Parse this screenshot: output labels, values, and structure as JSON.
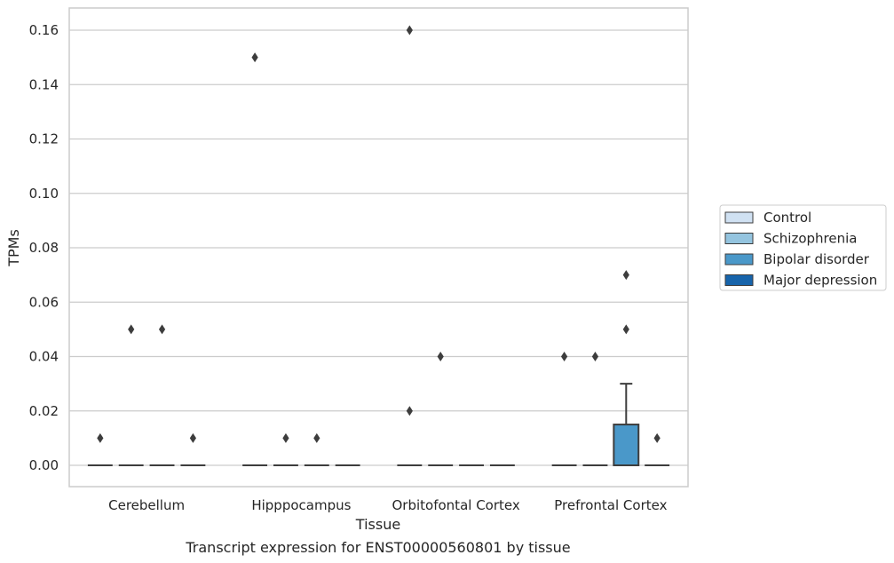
{
  "chart_data": {
    "type": "box",
    "title": "",
    "caption": "Transcript expression for ENST00000560801 by tissue",
    "xlabel": "Tissue",
    "ylabel": "TPMs",
    "ylim": [
      -0.008,
      0.168
    ],
    "yticks": [
      "0.00",
      "0.02",
      "0.04",
      "0.06",
      "0.08",
      "0.10",
      "0.12",
      "0.14",
      "0.16"
    ],
    "grid": "horizontal",
    "legend_position": "right",
    "categories": [
      "Cerebellum",
      "Hipppocampus",
      "Orbitofontal Cortex",
      "Prefrontal Cortex"
    ],
    "series": [
      {
        "name": "Control",
        "color": "#d0e1f2",
        "boxes": [
          {
            "q1": 0,
            "median": 0,
            "q3": 0,
            "whisker_low": 0,
            "whisker_high": 0,
            "outliers": [
              0.01
            ]
          },
          {
            "q1": 0,
            "median": 0,
            "q3": 0,
            "whisker_low": 0,
            "whisker_high": 0,
            "outliers": [
              0.15
            ]
          },
          {
            "q1": 0,
            "median": 0,
            "q3": 0,
            "whisker_low": 0,
            "whisker_high": 0,
            "outliers": [
              0.16,
              0.02
            ]
          },
          {
            "q1": 0,
            "median": 0,
            "q3": 0,
            "whisker_low": 0,
            "whisker_high": 0,
            "outliers": [
              0.04
            ]
          }
        ]
      },
      {
        "name": "Schizophrenia",
        "color": "#94c4df",
        "boxes": [
          {
            "q1": 0,
            "median": 0,
            "q3": 0,
            "whisker_low": 0,
            "whisker_high": 0,
            "outliers": [
              0.05
            ]
          },
          {
            "q1": 0,
            "median": 0,
            "q3": 0,
            "whisker_low": 0,
            "whisker_high": 0,
            "outliers": [
              0.01
            ]
          },
          {
            "q1": 0,
            "median": 0,
            "q3": 0,
            "whisker_low": 0,
            "whisker_high": 0,
            "outliers": [
              0.04
            ]
          },
          {
            "q1": 0,
            "median": 0,
            "q3": 0,
            "whisker_low": 0,
            "whisker_high": 0,
            "outliers": [
              0.04
            ]
          }
        ]
      },
      {
        "name": "Bipolar disorder",
        "color": "#4a98c9",
        "boxes": [
          {
            "q1": 0,
            "median": 0,
            "q3": 0,
            "whisker_low": 0,
            "whisker_high": 0,
            "outliers": [
              0.05
            ]
          },
          {
            "q1": 0,
            "median": 0,
            "q3": 0,
            "whisker_low": 0,
            "whisker_high": 0,
            "outliers": [
              0.01
            ]
          },
          {
            "q1": 0,
            "median": 0,
            "q3": 0,
            "whisker_low": 0,
            "whisker_high": 0,
            "outliers": []
          },
          {
            "q1": 0,
            "median": 0,
            "q3": 0.015,
            "whisker_low": 0,
            "whisker_high": 0.03,
            "outliers": [
              0.07,
              0.05
            ]
          }
        ]
      },
      {
        "name": "Major depression",
        "color": "#1764ab",
        "boxes": [
          {
            "q1": 0,
            "median": 0,
            "q3": 0,
            "whisker_low": 0,
            "whisker_high": 0,
            "outliers": [
              0.01
            ]
          },
          {
            "q1": 0,
            "median": 0,
            "q3": 0,
            "whisker_low": 0,
            "whisker_high": 0,
            "outliers": []
          },
          {
            "q1": 0,
            "median": 0,
            "q3": 0,
            "whisker_low": 0,
            "whisker_high": 0,
            "outliers": []
          },
          {
            "q1": 0,
            "median": 0,
            "q3": 0,
            "whisker_low": 0,
            "whisker_high": 0,
            "outliers": [
              0.01
            ]
          }
        ]
      }
    ]
  }
}
